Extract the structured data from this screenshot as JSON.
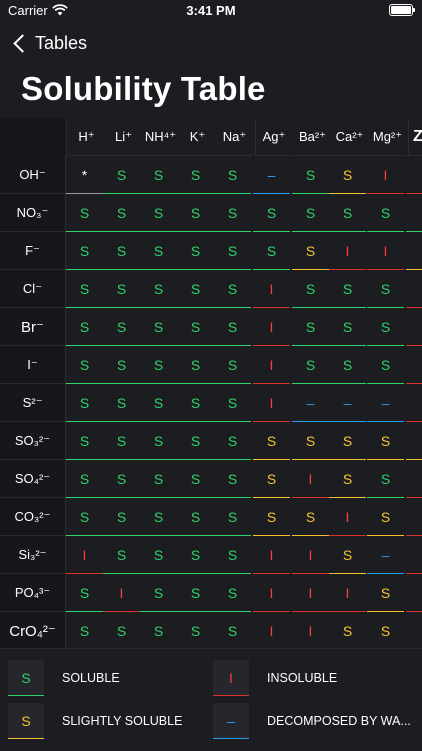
{
  "status_bar": {
    "carrier": "Carrier",
    "time": "3:41 PM"
  },
  "nav": {
    "back_label": "Tables"
  },
  "page_title": "Solubility Table",
  "colors": {
    "soluble": "#2fd16a",
    "slightly": "#f5c430",
    "insoluble": "#ff3b3b",
    "decomposed": "#2a9df4"
  },
  "cations": [
    "H⁺",
    "Li⁺",
    "NH⁴⁺",
    "K⁺",
    "Na⁺",
    "Ag⁺",
    "Ba²⁺",
    "Ca²⁺",
    "Mg²⁺",
    "Zr"
  ],
  "rows": [
    {
      "anion": "OH⁻",
      "cells": [
        "*",
        "S",
        "S",
        "S",
        "S",
        "–",
        "S",
        "S",
        "I",
        ""
      ]
    },
    {
      "anion": "NO₃⁻",
      "cells": [
        "S",
        "S",
        "S",
        "S",
        "S",
        "S",
        "S",
        "S",
        "S",
        ""
      ]
    },
    {
      "anion": "F⁻",
      "cells": [
        "S",
        "S",
        "S",
        "S",
        "S",
        "S",
        "S",
        "I",
        "I",
        ""
      ]
    },
    {
      "anion": "Cl⁻",
      "cells": [
        "S",
        "S",
        "S",
        "S",
        "S",
        "I",
        "S",
        "S",
        "S",
        ""
      ]
    },
    {
      "anion": "Br⁻",
      "cells": [
        "S",
        "S",
        "S",
        "S",
        "S",
        "I",
        "S",
        "S",
        "S",
        ""
      ]
    },
    {
      "anion": "I⁻",
      "cells": [
        "S",
        "S",
        "S",
        "S",
        "S",
        "I",
        "S",
        "S",
        "S",
        ""
      ]
    },
    {
      "anion": "S²⁻",
      "cells": [
        "S",
        "S",
        "S",
        "S",
        "S",
        "I",
        "–",
        "–",
        "–",
        ""
      ]
    },
    {
      "anion": "SO₃²⁻",
      "cells": [
        "S",
        "S",
        "S",
        "S",
        "S",
        "S",
        "S",
        "S",
        "S",
        ""
      ]
    },
    {
      "anion": "SO₄²⁻",
      "cells": [
        "S",
        "S",
        "S",
        "S",
        "S",
        "S",
        "I",
        "S",
        "S",
        ""
      ]
    },
    {
      "anion": "CO₃²⁻",
      "cells": [
        "S",
        "S",
        "S",
        "S",
        "S",
        "S",
        "S",
        "I",
        "S",
        ""
      ]
    },
    {
      "anion": "Si₃²⁻",
      "cells": [
        "I",
        "S",
        "S",
        "S",
        "S",
        "I",
        "I",
        "S",
        "–",
        ""
      ]
    },
    {
      "anion": "PO₄³⁻",
      "cells": [
        "S",
        "I",
        "S",
        "S",
        "S",
        "I",
        "I",
        "I",
        "S",
        ""
      ]
    },
    {
      "anion": "CrO₄²⁻",
      "cells": [
        "S",
        "S",
        "S",
        "S",
        "S",
        "I",
        "I",
        "S",
        "S",
        ""
      ]
    }
  ],
  "cell_kinds": [
    [
      "X",
      "S",
      "S",
      "S",
      "S",
      "D",
      "S",
      "L",
      "I",
      "I"
    ],
    [
      "S",
      "S",
      "S",
      "S",
      "S",
      "S",
      "S",
      "S",
      "S",
      "S"
    ],
    [
      "S",
      "S",
      "S",
      "S",
      "S",
      "S",
      "L",
      "I",
      "I",
      "L"
    ],
    [
      "S",
      "S",
      "S",
      "S",
      "S",
      "I",
      "S",
      "S",
      "S",
      "I"
    ],
    [
      "S",
      "S",
      "S",
      "S",
      "S",
      "I",
      "S",
      "S",
      "S",
      "I"
    ],
    [
      "S",
      "S",
      "S",
      "S",
      "S",
      "I",
      "S",
      "S",
      "S",
      "I"
    ],
    [
      "S",
      "S",
      "S",
      "S",
      "S",
      "I",
      "D",
      "D",
      "D",
      "I"
    ],
    [
      "S",
      "S",
      "S",
      "S",
      "S",
      "L",
      "L",
      "L",
      "L",
      "L"
    ],
    [
      "S",
      "S",
      "S",
      "S",
      "S",
      "L",
      "I",
      "L",
      "S",
      "I"
    ],
    [
      "S",
      "S",
      "S",
      "S",
      "S",
      "L",
      "L",
      "I",
      "L",
      "I"
    ],
    [
      "I",
      "S",
      "S",
      "S",
      "S",
      "I",
      "I",
      "L",
      "D",
      "I"
    ],
    [
      "S",
      "I",
      "S",
      "S",
      "S",
      "I",
      "I",
      "I",
      "L",
      "I"
    ],
    [
      "S",
      "S",
      "S",
      "S",
      "S",
      "I",
      "I",
      "L",
      "L",
      "I"
    ]
  ],
  "legend": [
    {
      "symbol": "S",
      "label": "SOLUBLE"
    },
    {
      "symbol": "I",
      "label": "INSOLUBLE"
    },
    {
      "symbol": "S",
      "label": "SLIGHTLY SOLUBLE"
    },
    {
      "symbol": "–",
      "label": "DECOMPOSED BY WA..."
    }
  ]
}
